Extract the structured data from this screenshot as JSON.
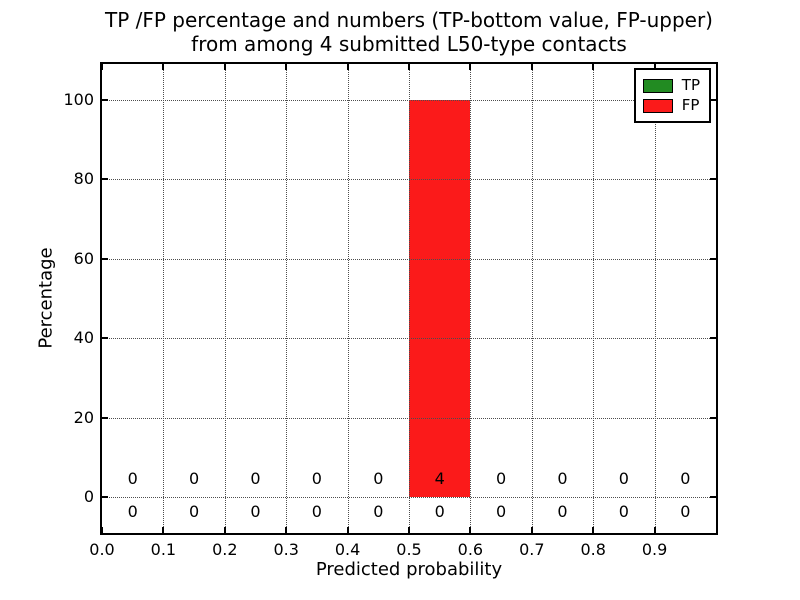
{
  "chart_data": {
    "type": "bar",
    "title_lines": [
      "TP /FP percentage and numbers (TP-bottom value, FP-upper)",
      "from among 4 submitted L50-type contacts"
    ],
    "xlabel": "Predicted probability",
    "ylabel": "Percentage",
    "xlim": [
      0.0,
      1.0
    ],
    "ylim": [
      -9,
      109
    ],
    "x_ticks": [
      "0.0",
      "0.1",
      "0.2",
      "0.3",
      "0.4",
      "0.5",
      "0.6",
      "0.7",
      "0.8",
      "0.9"
    ],
    "y_ticks": [
      "0",
      "20",
      "40",
      "60",
      "80",
      "100"
    ],
    "grid": true,
    "grid_style": "dotted",
    "bin_edges": [
      0.0,
      0.1,
      0.2,
      0.3,
      0.4,
      0.5,
      0.6,
      0.7,
      0.8,
      0.9,
      1.0
    ],
    "bin_centers": [
      0.05,
      0.15,
      0.25,
      0.35,
      0.45,
      0.55,
      0.65,
      0.75,
      0.85,
      0.95
    ],
    "series": [
      {
        "name": "TP",
        "color": "#228b22",
        "percentages": [
          0,
          0,
          0,
          0,
          0,
          0,
          0,
          0,
          0,
          0
        ],
        "counts": [
          0,
          0,
          0,
          0,
          0,
          0,
          0,
          0,
          0,
          0
        ],
        "counts_row": "bottom"
      },
      {
        "name": "FP",
        "color": "#fb1a1a",
        "percentages": [
          0,
          0,
          0,
          0,
          0,
          100,
          0,
          0,
          0,
          0
        ],
        "counts": [
          0,
          0,
          0,
          0,
          0,
          4,
          0,
          0,
          0,
          0
        ],
        "counts_row": "top"
      }
    ],
    "legend": {
      "position": "upper right",
      "entries": [
        {
          "label": "TP",
          "color": "#228b22"
        },
        {
          "label": "FP",
          "color": "#fb1a1a"
        }
      ]
    }
  }
}
